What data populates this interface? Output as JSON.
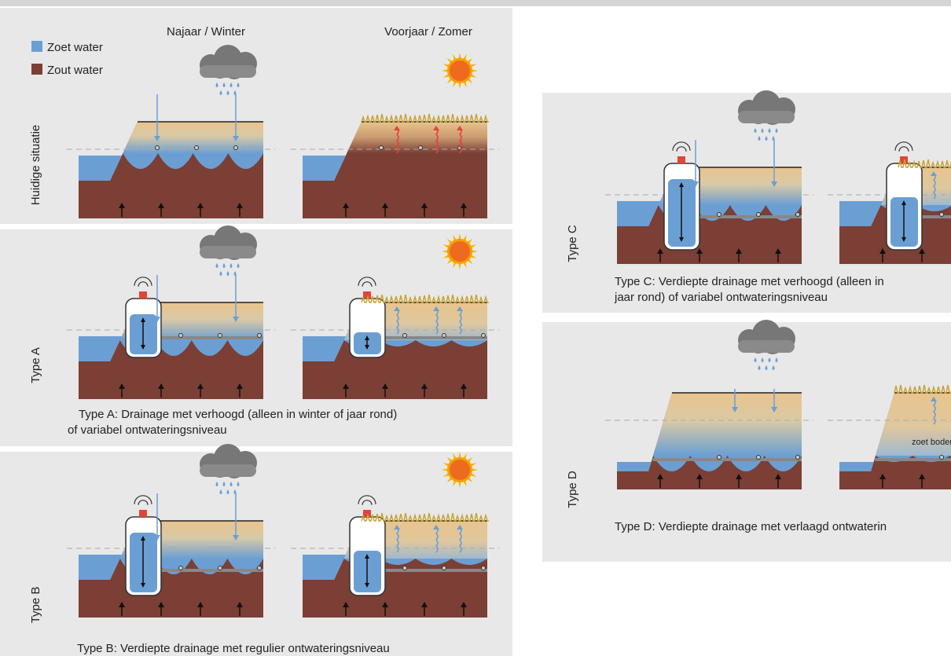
{
  "columns": [
    "Najaar / Winter",
    "Voorjaar / Zomer"
  ],
  "legend": [
    "Zoet water",
    "Zout water"
  ],
  "rows": [
    {
      "label": "Huidige situatie"
    },
    {
      "label": "Type A",
      "caption": [
        "Type A: Drainage met verhoogd (alleen in winter of jaar rond)",
        "of variabel ontwateringsniveau"
      ]
    },
    {
      "label": "Type B",
      "caption": [
        "Type B: Verdiepte drainage met regulier ontwateringsniveau"
      ]
    },
    {
      "label": "Type C",
      "caption": [
        "Type C: Verdiepte drainage met verhoogd (alleen in",
        "jaar rond) of variabel ontwateringsniveau"
      ]
    },
    {
      "label": "Type D",
      "caption": [
        "Type D: Verdiepte drainage met verlaagd ontwaterin"
      ],
      "note": "zoet boden"
    }
  ]
}
